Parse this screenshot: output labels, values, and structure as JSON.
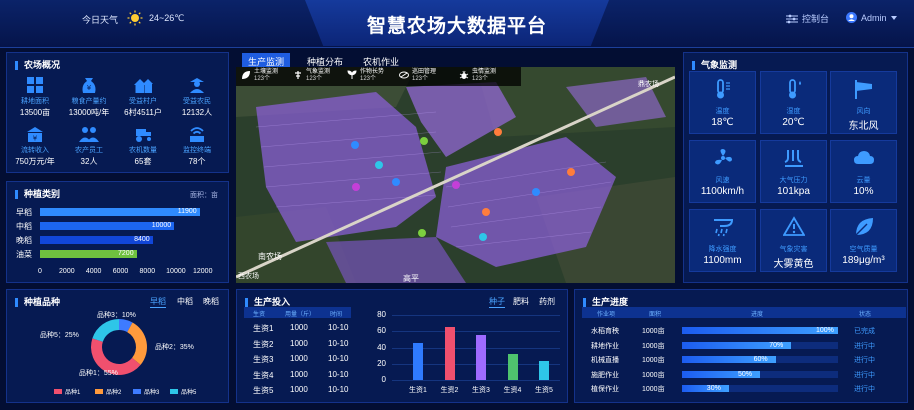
{
  "header": {
    "title": "智慧农场大数据平台",
    "weather_label": "今日天气",
    "temp_range": "24~26℃",
    "console": "控制台",
    "admin": "Admin"
  },
  "overview": {
    "title": "农场概况",
    "items": [
      {
        "label": "耕地面积",
        "value": "13500亩",
        "icon": "field-icon"
      },
      {
        "label": "粮食产量约",
        "value": "13000吨/年",
        "icon": "grain-bag-icon"
      },
      {
        "label": "受益村户",
        "value": "6村4511户",
        "icon": "village-icon"
      },
      {
        "label": "受益农民",
        "value": "12132人",
        "icon": "farmer-icon"
      },
      {
        "label": "流转收入",
        "value": "750万元/年",
        "icon": "income-icon"
      },
      {
        "label": "农产员工",
        "value": "32人",
        "icon": "staff-icon"
      },
      {
        "label": "农机数量",
        "value": "65套",
        "icon": "machine-icon"
      },
      {
        "label": "监控终端",
        "value": "78个",
        "icon": "monitor-icon"
      }
    ]
  },
  "crop_types": {
    "title": "种植类别",
    "unit": "面积：亩"
  },
  "tabs": [
    {
      "label": "生产监测"
    },
    {
      "label": "种植分布"
    },
    {
      "label": "农机作业"
    }
  ],
  "map_toolbar": [
    {
      "label": "土壤监测",
      "count": "123个",
      "icon": "soil-monitor-icon"
    },
    {
      "label": "气象监测",
      "count": "123个",
      "icon": "weather-station-icon"
    },
    {
      "label": "作物长势",
      "count": "123个",
      "icon": "crop-growth-icon"
    },
    {
      "label": "巡田管理",
      "count": "123个",
      "icon": "patrol-icon"
    },
    {
      "label": "虫情监测",
      "count": "123个",
      "icon": "pest-icon"
    }
  ],
  "map": {
    "place_1": "南农场",
    "place_2": "鼎农场",
    "place_3": "高平",
    "place_4": "西农场"
  },
  "weather": {
    "title": "气象监测",
    "items": [
      {
        "label": "温度",
        "value": "18℃",
        "icon": "thermometer-icon"
      },
      {
        "label": "湿度",
        "value": "20℃",
        "icon": "humidity-icon"
      },
      {
        "label": "风向",
        "value": "东北风",
        "icon": "wind-direction-icon"
      },
      {
        "label": "风速",
        "value": "1100km/h",
        "icon": "fan-icon"
      },
      {
        "label": "大气压力",
        "value": "101kpa",
        "icon": "pressure-icon"
      },
      {
        "label": "云量",
        "value": "10%",
        "icon": "cloud-icon"
      },
      {
        "label": "降水强度",
        "value": "1100mm",
        "icon": "rain-icon"
      },
      {
        "label": "气象灾害",
        "value": "大雾黄色",
        "icon": "warning-icon"
      },
      {
        "label": "空气质量",
        "value": "189μg/m³",
        "icon": "leaf-icon"
      }
    ]
  },
  "varieties": {
    "title": "种植品种",
    "tabs": [
      "早稻",
      "中稻",
      "晚稻"
    ]
  },
  "inputs": {
    "title": "生产投入",
    "tabs": [
      "种子",
      "肥料",
      "药剂"
    ],
    "columns": [
      "生资",
      "用量（斤）",
      "时间"
    ],
    "rows": [
      [
        "生资1",
        "1000",
        "10-10"
      ],
      [
        "生资2",
        "1000",
        "10-10"
      ],
      [
        "生资3",
        "1000",
        "10-10"
      ],
      [
        "生资4",
        "1000",
        "10-10"
      ],
      [
        "生资5",
        "1000",
        "10-10"
      ]
    ]
  },
  "progress": {
    "title": "生产进度",
    "columns": [
      "作业项",
      "面积",
      "进度",
      "状态"
    ],
    "rows": [
      {
        "name": "水稻育秧",
        "area": "1000亩",
        "pct": 100,
        "pct_label": "100%",
        "status": "已完成"
      },
      {
        "name": "耕地作业",
        "area": "1000亩",
        "pct": 70,
        "pct_label": "70%",
        "status": "进行中"
      },
      {
        "name": "机械直播",
        "area": "1000亩",
        "pct": 60,
        "pct_label": "60%",
        "status": "进行中"
      },
      {
        "name": "施肥作业",
        "area": "1000亩",
        "pct": 50,
        "pct_label": "50%",
        "status": "进行中"
      },
      {
        "name": "植保作业",
        "area": "1000亩",
        "pct": 30,
        "pct_label": "30%",
        "status": "进行中"
      }
    ]
  },
  "colors": {
    "accent": "#2f8bff",
    "panel": "#061a52",
    "bg": "#030e33"
  },
  "chart_data": [
    {
      "type": "bar",
      "orientation": "horizontal",
      "categories": [
        "早稻",
        "中稻",
        "晚稻",
        "油菜"
      ],
      "values": [
        11900,
        10000,
        8400,
        7200
      ],
      "value_labels": [
        "11900",
        "10000",
        "8400",
        "7200"
      ],
      "colors": [
        "#2f8bff",
        "#1c66f0",
        "#1146d8",
        "#6fc23f"
      ],
      "xlim": [
        0,
        12000
      ],
      "xticks": [
        "0",
        "2000",
        "4000",
        "6000",
        "8000",
        "10000",
        "12000"
      ]
    },
    {
      "type": "pie",
      "donut": true,
      "categories": [
        "品种1",
        "品种2",
        "品种3",
        "品种5"
      ],
      "values": [
        55,
        35,
        10,
        25
      ],
      "labels": [
        "品种1：55%",
        "品种2：35%",
        "品种3：10%",
        "品种5：25%"
      ],
      "colors": [
        "#f0506e",
        "#ff9a3c",
        "#3e7bff",
        "#2ec6e8"
      ],
      "legend": [
        "品种1",
        "品种2",
        "品种3",
        "品种5"
      ],
      "legend_position": "bottom"
    },
    {
      "type": "bar",
      "categories": [
        "生资1",
        "生资2",
        "生资3",
        "生资4",
        "生资5"
      ],
      "values": [
        45,
        65,
        55,
        32,
        23
      ],
      "colors": [
        "#2f7bff",
        "#f0506e",
        "#9f6bff",
        "#4fc36e",
        "#2ec6e8"
      ],
      "ylim": [
        0,
        80
      ],
      "yticks": [
        "0",
        "20",
        "40",
        "60",
        "80"
      ]
    }
  ]
}
